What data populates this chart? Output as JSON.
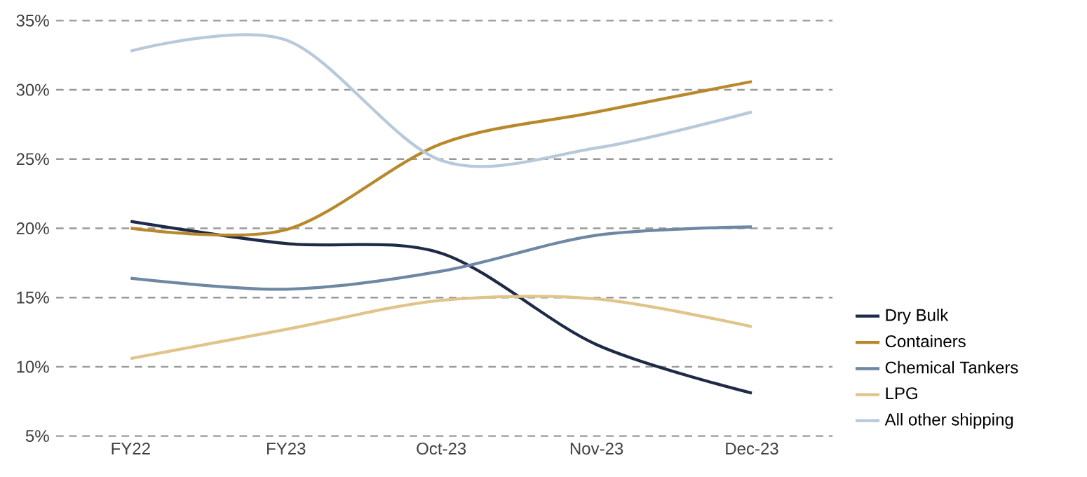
{
  "chart_data": {
    "type": "line",
    "categories": [
      "FY22",
      "FY23",
      "Oct-23",
      "Nov-23",
      "Dec-23"
    ],
    "series": [
      {
        "name": "Dry Bulk",
        "color": "#1f2a48",
        "values": [
          20.5,
          18.9,
          18.2,
          11.6,
          8.1
        ]
      },
      {
        "name": "Containers",
        "color": "#b8892b",
        "values": [
          20.0,
          19.9,
          26.1,
          28.4,
          30.6
        ]
      },
      {
        "name": "Chemical Tankers",
        "color": "#6e87a3",
        "values": [
          16.4,
          15.6,
          16.9,
          19.5,
          20.1
        ]
      },
      {
        "name": "LPG",
        "color": "#e0c48a",
        "values": [
          10.6,
          12.7,
          14.8,
          14.9,
          12.9
        ]
      },
      {
        "name": "All other shipping",
        "color": "#b8c9db",
        "values": [
          32.8,
          33.6,
          24.9,
          25.8,
          28.4
        ]
      }
    ],
    "ylim": [
      5,
      35
    ],
    "yticks": [
      {
        "value": 5,
        "label": "5%"
      },
      {
        "value": 10,
        "label": "10%"
      },
      {
        "value": 15,
        "label": "15%"
      },
      {
        "value": 20,
        "label": "20%"
      },
      {
        "value": 25,
        "label": "25%"
      },
      {
        "value": 30,
        "label": "30%"
      },
      {
        "value": 35,
        "label": "35%"
      }
    ],
    "grid": "y",
    "legend": "bottom right",
    "marker": "none",
    "line_style": "solid"
  }
}
